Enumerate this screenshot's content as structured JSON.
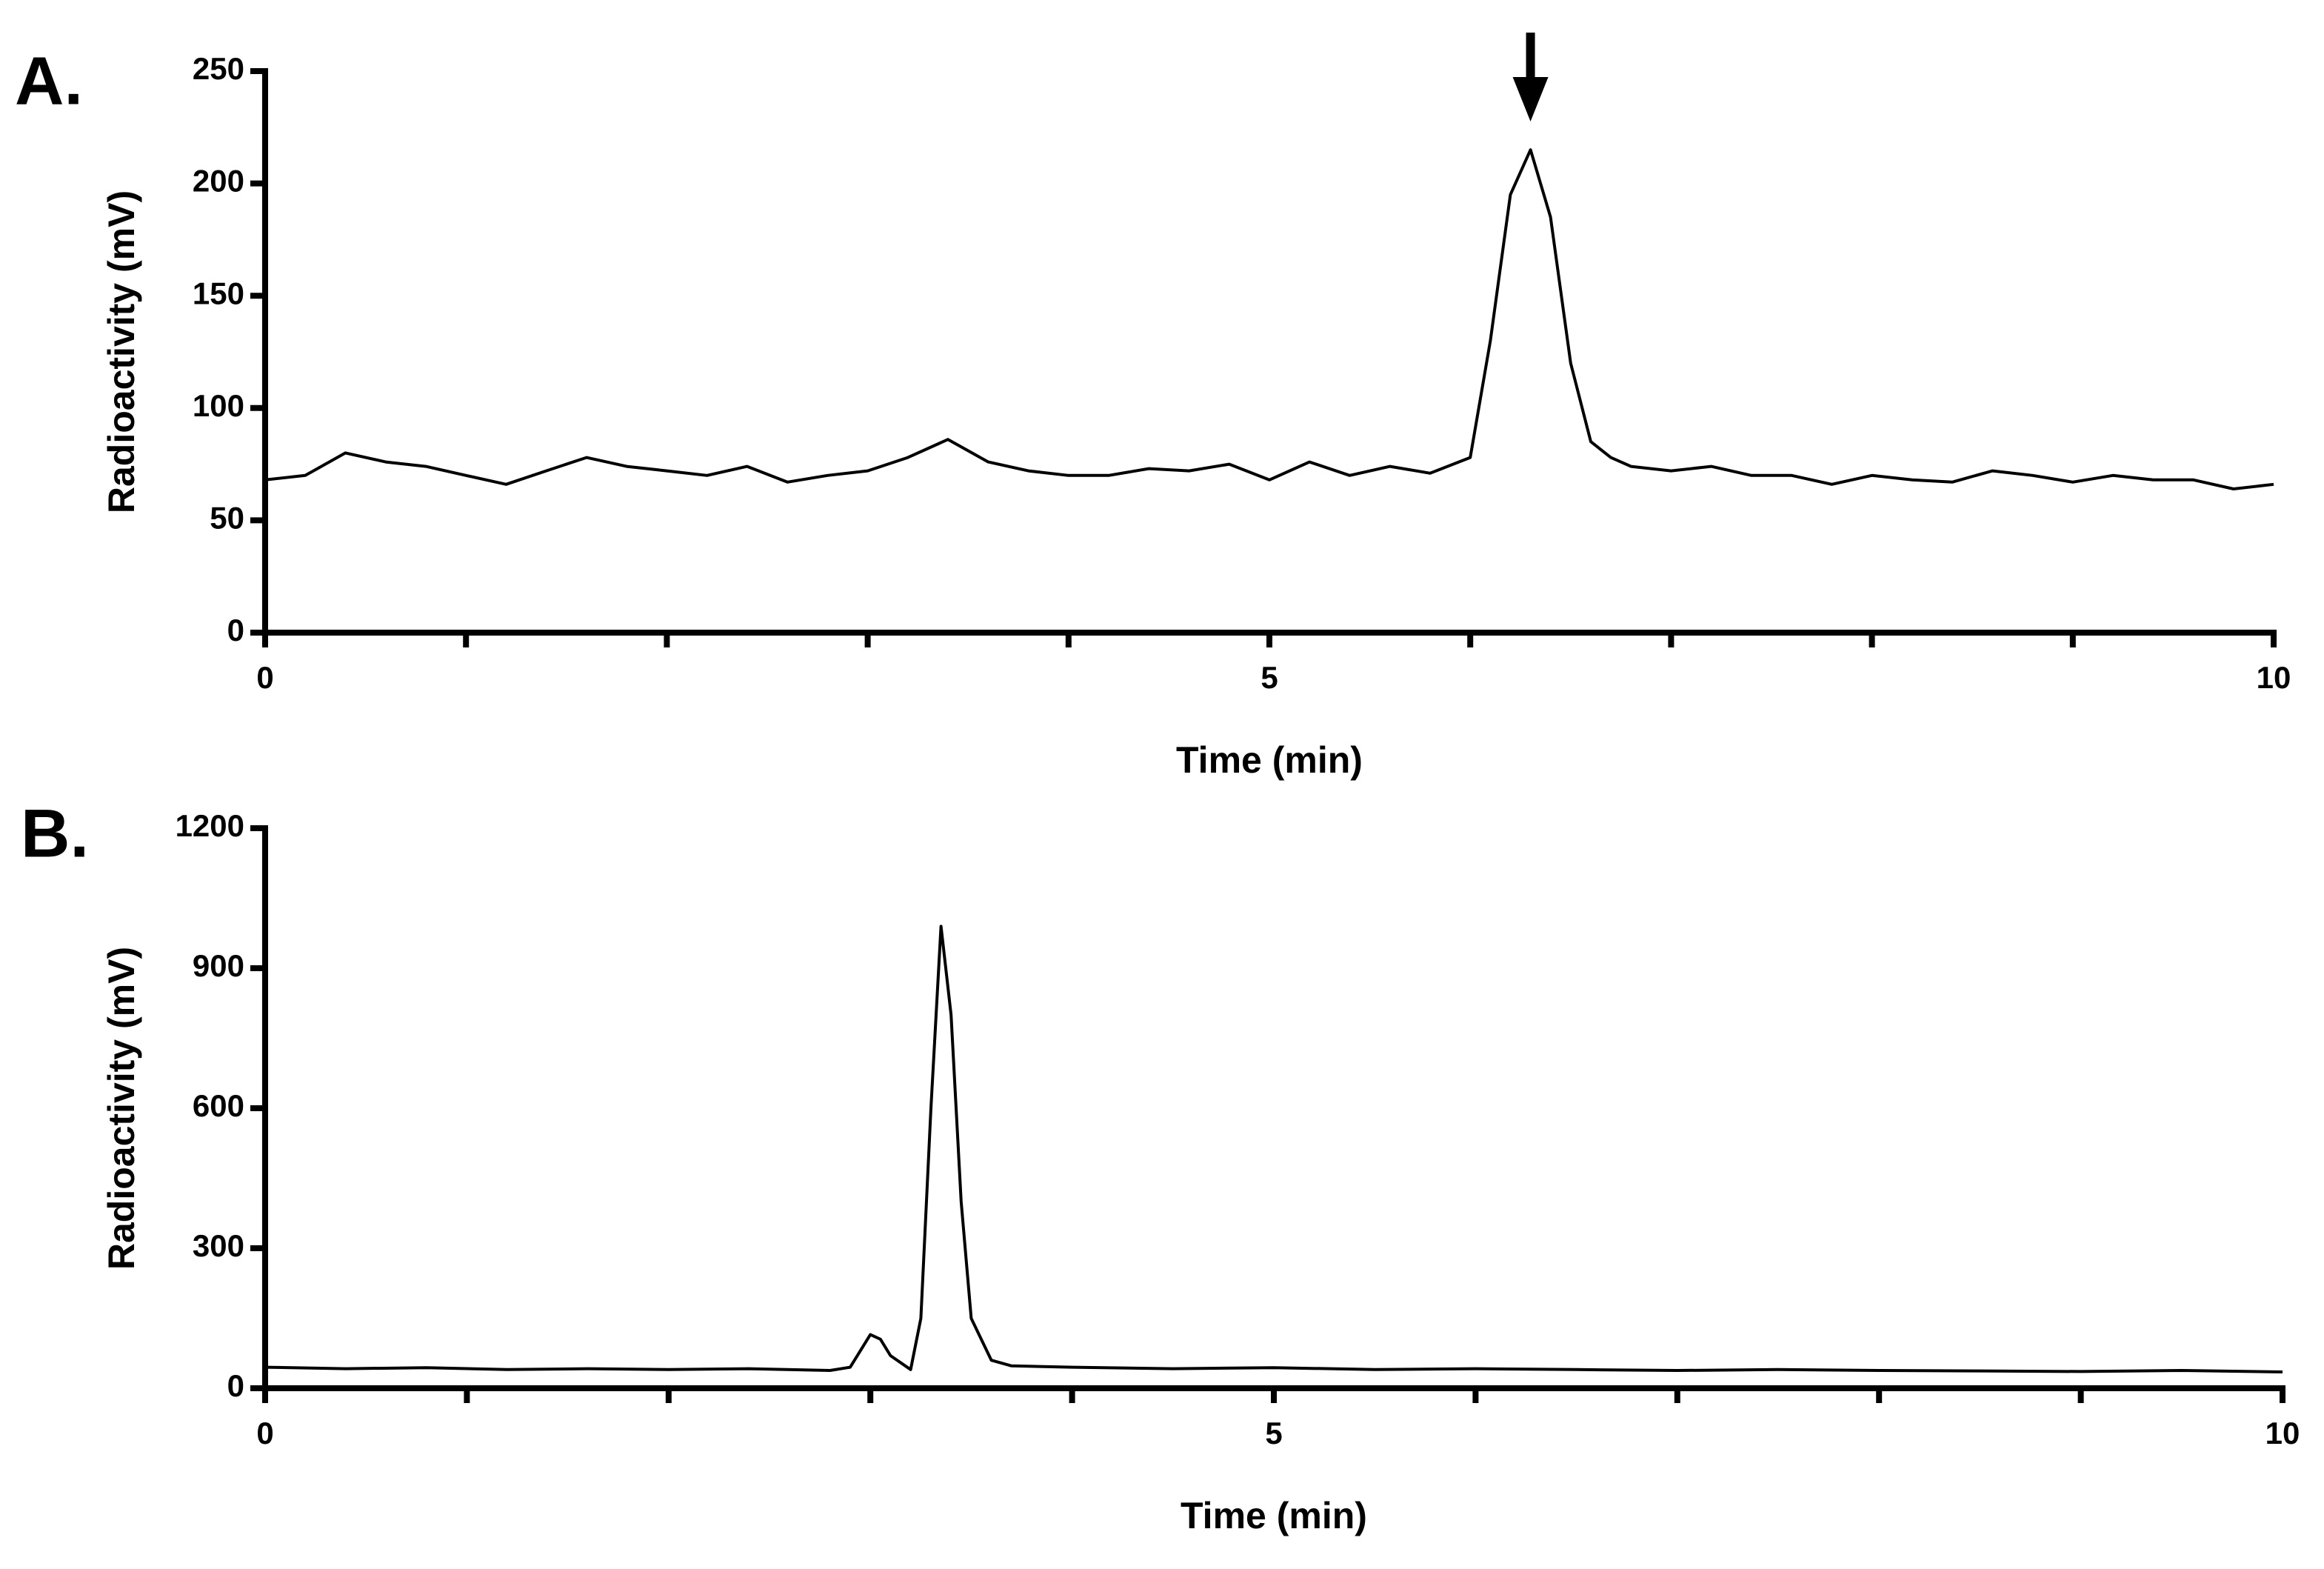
{
  "chart_data": [
    {
      "type": "line",
      "label": "A.",
      "xlabel": "Time (min)",
      "ylabel": "Radioactivity (mV)",
      "x": [
        0,
        0.2,
        0.4,
        0.6,
        0.8,
        1,
        1.2,
        1.4,
        1.6,
        1.8,
        2,
        2.2,
        2.4,
        2.6,
        2.8,
        3,
        3.2,
        3.4,
        3.6,
        3.8,
        4,
        4.2,
        4.4,
        4.6,
        4.8,
        5,
        5.2,
        5.4,
        5.6,
        5.8,
        6,
        6.1,
        6.2,
        6.3,
        6.4,
        6.5,
        6.6,
        6.7,
        6.8,
        7,
        7.2,
        7.4,
        7.6,
        7.8,
        8,
        8.2,
        8.4,
        8.6,
        8.8,
        9,
        9.2,
        9.4,
        9.6,
        9.8,
        10
      ],
      "values": [
        68,
        70,
        80,
        76,
        74,
        70,
        66,
        72,
        78,
        74,
        72,
        70,
        74,
        67,
        70,
        72,
        78,
        86,
        76,
        72,
        70,
        70,
        73,
        72,
        75,
        68,
        76,
        70,
        74,
        71,
        78,
        130,
        195,
        215,
        185,
        120,
        85,
        78,
        74,
        72,
        74,
        70,
        70,
        66,
        70,
        68,
        67,
        72,
        70,
        67,
        70,
        68,
        68,
        64,
        66
      ],
      "color": "#000000",
      "xlim": [
        0,
        10
      ],
      "xticks": [
        0,
        5,
        10
      ],
      "xminor_ticks": [
        1,
        2,
        3,
        4,
        6,
        7,
        8,
        9
      ],
      "ylim": [
        0,
        250
      ],
      "yticks": [
        0,
        50,
        100,
        150,
        200,
        250
      ],
      "arrow": {
        "x": 6.3
      }
    },
    {
      "type": "line",
      "label": "B.",
      "xlabel": "Time (min)",
      "ylabel": "Radioactivity (mV)",
      "x": [
        0,
        0.4,
        0.8,
        1.2,
        1.6,
        2,
        2.4,
        2.8,
        2.9,
        3,
        3.05,
        3.1,
        3.2,
        3.25,
        3.3,
        3.35,
        3.4,
        3.45,
        3.5,
        3.6,
        3.7,
        4,
        4.5,
        5,
        5.5,
        6,
        6.5,
        7,
        7.5,
        8,
        8.5,
        9,
        9.5,
        10
      ],
      "values": [
        45,
        42,
        44,
        40,
        42,
        40,
        42,
        38,
        45,
        115,
        105,
        70,
        40,
        150,
        600,
        990,
        800,
        400,
        150,
        60,
        48,
        45,
        42,
        44,
        40,
        42,
        40,
        38,
        40,
        38,
        37,
        36,
        38,
        35
      ],
      "color": "#000000",
      "xlim": [
        0,
        10
      ],
      "xticks": [
        0,
        5,
        10
      ],
      "xminor_ticks": [
        1,
        2,
        3,
        4,
        6,
        7,
        8,
        9
      ],
      "ylim": [
        0,
        1200
      ],
      "yticks": [
        0,
        300,
        600,
        900,
        1200
      ]
    }
  ]
}
